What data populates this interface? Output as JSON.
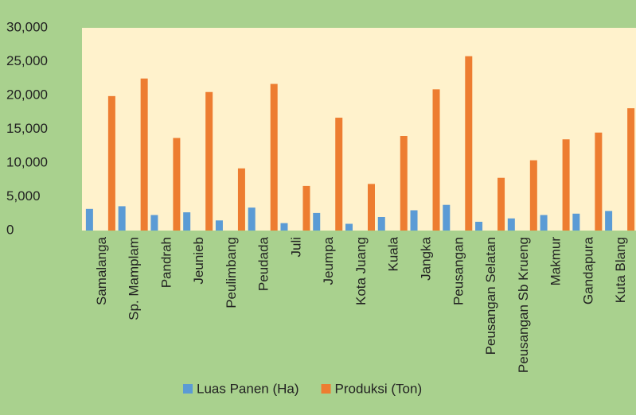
{
  "chart_data": {
    "type": "bar",
    "categories": [
      "Samalanga",
      "Sp. Mamplam",
      "Pandrah",
      "Jeunieb",
      "Peulimbang",
      "Peudada",
      "Juli",
      "Jeumpa",
      "Kota Juang",
      "Kuala",
      "Jangka",
      "Peusangan",
      "Peusangan Selatan",
      "Peusangan Sb Krueng",
      "Makmur",
      "Gandapura",
      "Kuta Blang"
    ],
    "series": [
      {
        "name": "Luas Panen (Ha)",
        "color": "#5b9bd5",
        "values": [
          3200,
          3600,
          2300,
          2700,
          1500,
          3400,
          1100,
          2600,
          1000,
          2000,
          3000,
          3800,
          1300,
          1800,
          2300,
          2500,
          2900
        ]
      },
      {
        "name": "Produksi (Ton)",
        "color": "#ed7d31",
        "values": [
          19900,
          22500,
          13700,
          20500,
          9200,
          21700,
          6600,
          16700,
          6900,
          14000,
          20900,
          25800,
          7800,
          10400,
          13500,
          14500,
          18100
        ]
      }
    ],
    "ylim": [
      0,
      30000
    ],
    "yticks": [
      0,
      {
        "value": 5000,
        "label": "5,000"
      },
      {
        "value": 10000,
        "label": "10,000"
      },
      {
        "value": 15000,
        "label": "15,000"
      },
      {
        "value": 20000,
        "label": "20,000"
      },
      {
        "value": 25000,
        "label": "25,000"
      },
      {
        "value": 30000,
        "label": "30,000"
      }
    ],
    "legend": "bottom"
  }
}
